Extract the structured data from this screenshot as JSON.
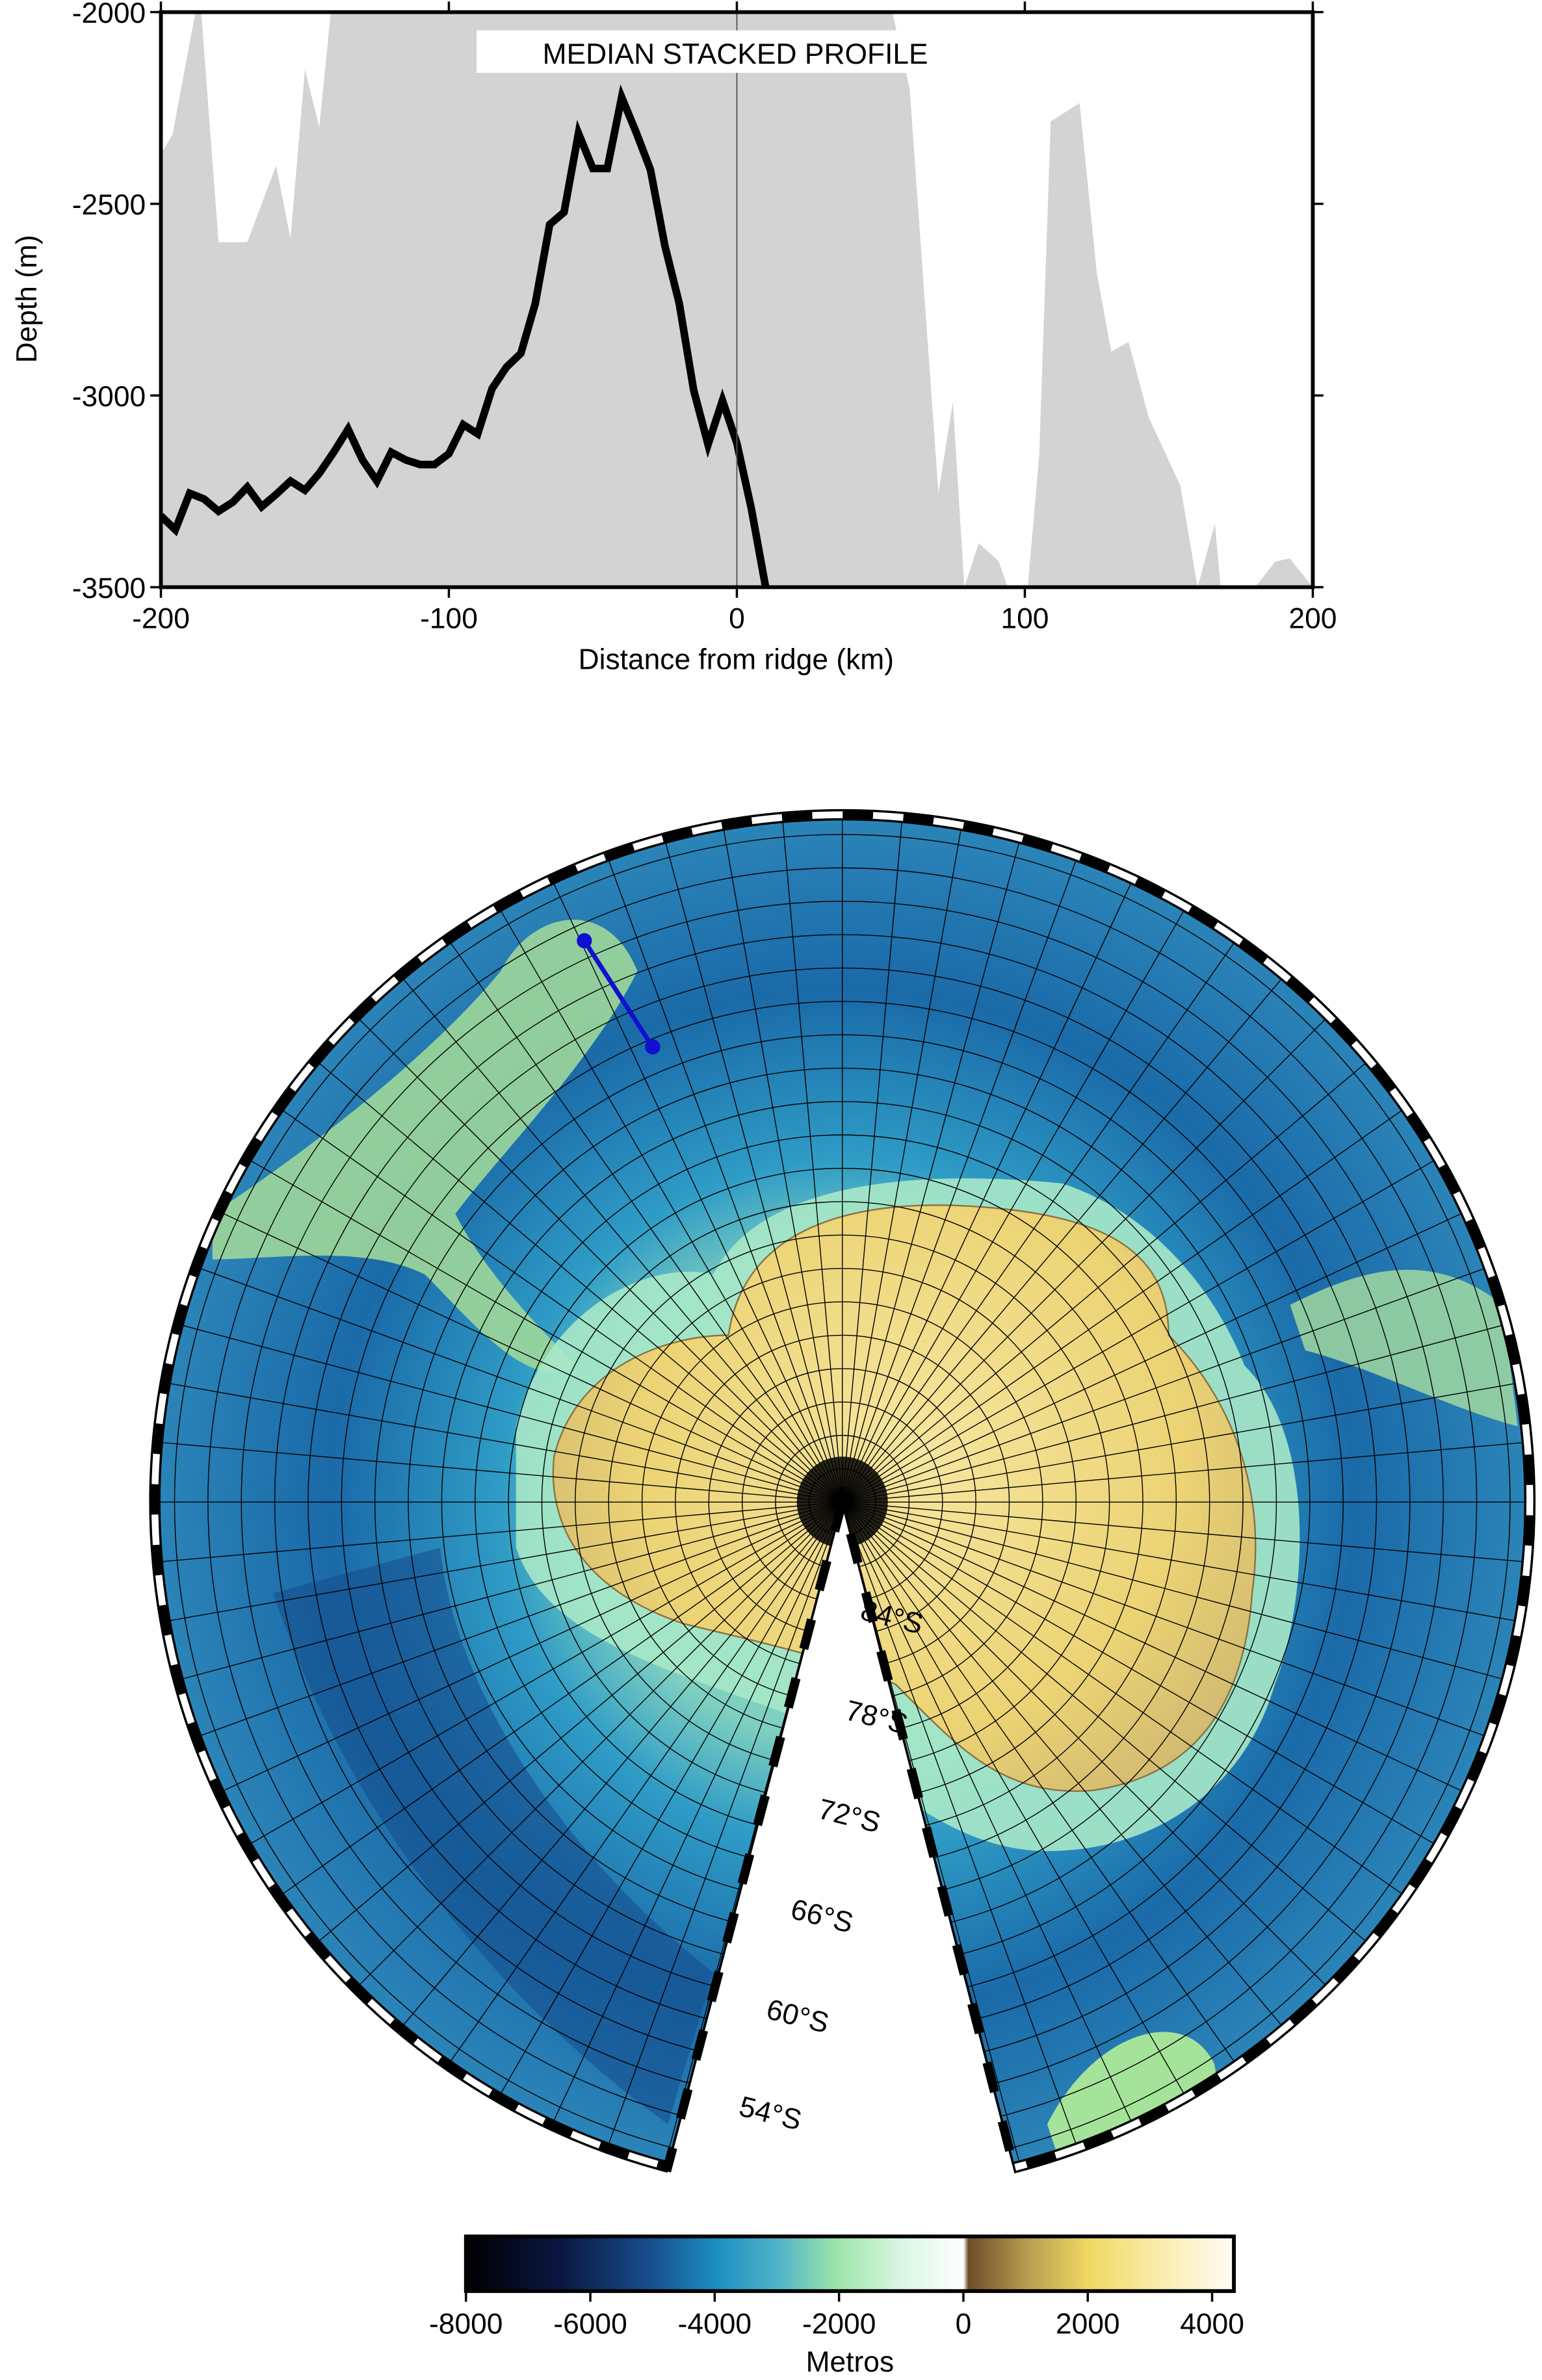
{
  "chart_data": [
    {
      "type": "line",
      "title": "MEDIAN STACKED PROFILE",
      "xlabel": "Distance from ridge (km)",
      "ylabel": "Depth (m)",
      "xlim": [
        -200,
        200
      ],
      "ylim": [
        -3500,
        -2000
      ],
      "xticks": [
        -200,
        -100,
        0,
        100,
        200
      ],
      "yticks": [
        -3500,
        -3000,
        -2500,
        -2000
      ],
      "reference_x": 0,
      "series": [
        {
          "type": "area",
          "color": "#d3d3d3",
          "x": [
            -200,
            -196,
            -188,
            -186,
            -180,
            -170,
            -160,
            -155,
            -150,
            -145,
            -141,
            -139,
            -137,
            54,
            60,
            70,
            75,
            79,
            84,
            91,
            94,
            101,
            105,
            109,
            119,
            125,
            130,
            136,
            143,
            154,
            160,
            166,
            168,
            180,
            187,
            192,
            200
          ],
          "values": [
            -2370,
            -2320,
            -2000,
            -2000,
            -2600,
            -2600,
            -2400,
            -2590,
            -2150,
            -2300,
            -2000,
            -2000,
            -2000,
            -2000,
            -2200,
            -3255,
            -3017,
            -3500,
            -3385,
            -3433,
            -3500,
            -3500,
            -3155,
            -2285,
            -2237,
            -2680,
            -2886,
            -2860,
            -3057,
            -3235,
            -3500,
            -3334,
            -3500,
            -3500,
            -3433,
            -3425,
            -3500
          ]
        },
        {
          "type": "line",
          "color": "#000000",
          "x": [
            -200,
            -195,
            -190,
            -185,
            -180,
            -175,
            -170,
            -165,
            -160,
            -155,
            -150,
            -145,
            -140,
            -135,
            -130,
            -125,
            -120,
            -115,
            -110,
            -105,
            -100,
            -95,
            -90,
            -85,
            -80,
            -75,
            -70,
            -65,
            -60,
            -55,
            -50,
            -45,
            -40,
            -35,
            -30,
            -25,
            -20,
            -15,
            -10,
            -5,
            0,
            5,
            10
          ],
          "values": [
            -3314,
            -3350,
            -3255,
            -3270,
            -3302,
            -3278,
            -3239,
            -3290,
            -3258,
            -3223,
            -3247,
            -3203,
            -3148,
            -3088,
            -3168,
            -3223,
            -3148,
            -3168,
            -3180,
            -3180,
            -3152,
            -3076,
            -3100,
            -2982,
            -2926,
            -2890,
            -2760,
            -2554,
            -2522,
            -2316,
            -2408,
            -2408,
            -2222,
            -2313,
            -2411,
            -2609,
            -2760,
            -2986,
            -3128,
            -3013,
            -3124,
            -3294,
            -3500
          ]
        }
      ]
    },
    {
      "type": "map",
      "lat_labels": [
        "84°S",
        "78°S",
        "72°S",
        "66°S",
        "60°S",
        "54°S"
      ]
    },
    {
      "type": "colorbar",
      "label": "Metros",
      "xlim": [
        -8000,
        4350
      ],
      "xticks": [
        -8000,
        -6000,
        -4000,
        -2000,
        0,
        2000,
        4000
      ],
      "colormap": [
        [
          -8000,
          "#000000"
        ],
        [
          -6500,
          "#0a1640"
        ],
        [
          -5000,
          "#17508f"
        ],
        [
          -4000,
          "#1b8dc0"
        ],
        [
          -3000,
          "#4fb3c9"
        ],
        [
          -2000,
          "#9fe6aa"
        ],
        [
          -1000,
          "#d9f6e2"
        ],
        [
          0,
          "#ffffff"
        ],
        [
          80,
          "#6e4c2a"
        ],
        [
          1000,
          "#b59a4e"
        ],
        [
          2000,
          "#f0d862"
        ],
        [
          3000,
          "#f8eaa2"
        ],
        [
          4350,
          "#fffdf5"
        ]
      ]
    }
  ]
}
